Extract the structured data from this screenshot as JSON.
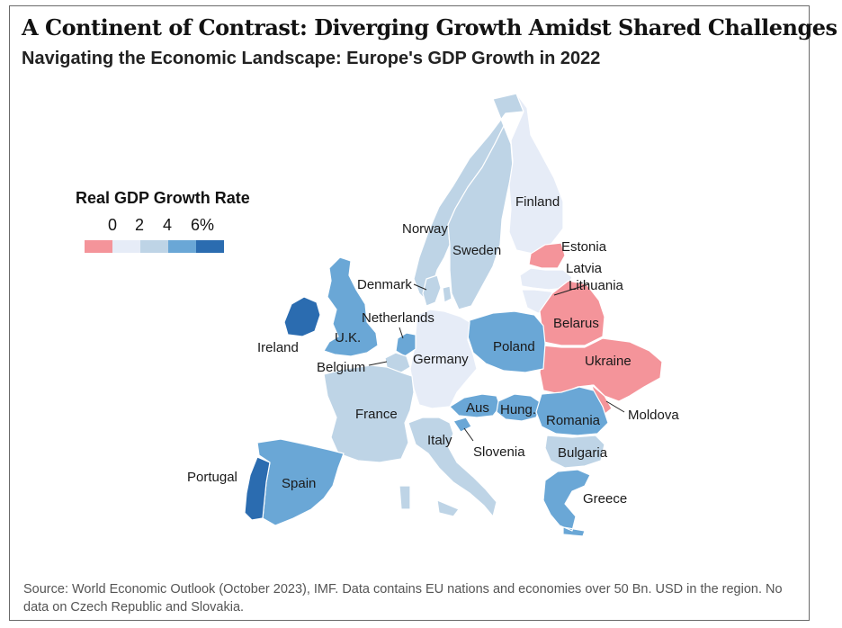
{
  "title": "A Continent of Contrast: Diverging Growth Amidst Shared Challenges",
  "subtitle": "Navigating the Economic Landscape: Europe's GDP Growth in 2022",
  "legend": {
    "title": "Real GDP Growth Rate",
    "ticks": [
      "0",
      "2",
      "4",
      "6%"
    ],
    "colors": [
      "#f4949a",
      "#e6ecf7",
      "#bed4e6",
      "#6aa7d6",
      "#2b6cb0"
    ]
  },
  "colors": {
    "negative": "#f4949a",
    "low": "#e6ecf7",
    "mid": "#bed4e6",
    "high": "#6aa7d6",
    "top": "#2b6cb0",
    "sea": "#ffffff",
    "border": "#ffffff"
  },
  "countries": {
    "finland": "Finland",
    "norway": "Norway",
    "sweden": "Sweden",
    "estonia": "Estonia",
    "latvia": "Latvia",
    "lithuania": "Lithuania",
    "denmark": "Denmark",
    "netherlands": "Netherlands",
    "uk": "U.K.",
    "ireland": "Ireland",
    "belgium": "Belgium",
    "germany": "Germany",
    "poland": "Poland",
    "belarus": "Belarus",
    "ukraine": "Ukraine",
    "france": "France",
    "austria": "Aus",
    "hungary": "Hung.",
    "romania": "Romania",
    "moldova": "Moldova",
    "italy": "Italy",
    "slovenia": "Slovenia",
    "bulgaria": "Bulgaria",
    "portugal": "Portugal",
    "spain": "Spain",
    "greece": "Greece"
  },
  "source": "Source: World Economic Outlook (October 2023), IMF. Data contains EU nations and economies over 50 Bn. USD in the region. No data on Czech Republic and Slovakia."
}
